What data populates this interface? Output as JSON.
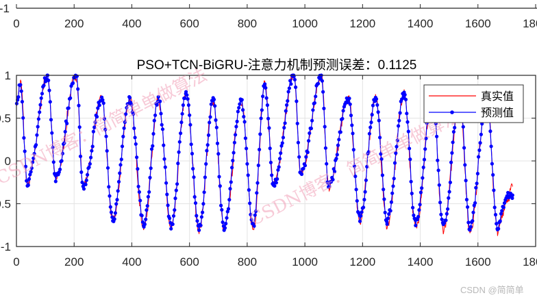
{
  "top_panel": {
    "x_ticks": [
      "0",
      "200",
      "400",
      "600",
      "800",
      "1000",
      "1200",
      "1400",
      "1600",
      "1800"
    ],
    "y_tick_bottom": "-1"
  },
  "chart_data": {
    "type": "line",
    "title": "PSO+TCN-BiGRU-注意力机制预测误差：0.1125",
    "xlabel": "",
    "ylabel": "",
    "xlim": [
      0,
      1800
    ],
    "ylim": [
      -1,
      1
    ],
    "x_ticks": [
      "0",
      "200",
      "400",
      "600",
      "800",
      "1000",
      "1200",
      "1400",
      "1600",
      "1800"
    ],
    "y_ticks": [
      "-1",
      "-0.5",
      "0",
      "0.5",
      "1"
    ],
    "grid": true,
    "legend_position": "top-right",
    "series": [
      {
        "name": "真实值",
        "color": "#ff0000",
        "marker": "none",
        "x": [
          1,
          14,
          38,
          108,
          136,
          207,
          231,
          296,
          334,
          393,
          442,
          492,
          536,
          588,
          633,
          682,
          720,
          779,
          821,
          861,
          892,
          962,
          986,
          1057,
          1082,
          1151,
          1191,
          1245,
          1285,
          1344,
          1384,
          1442,
          1480,
          1537,
          1572,
          1631,
          1668,
          1701,
          1720
        ],
        "y": [
          0.7,
          0.92,
          -0.27,
          1.0,
          -0.22,
          1.0,
          -0.3,
          0.72,
          -0.7,
          0.72,
          -0.78,
          0.72,
          -0.8,
          0.77,
          -0.8,
          0.7,
          -0.8,
          0.7,
          -0.8,
          0.9,
          -0.28,
          1.0,
          -0.15,
          1.0,
          -0.3,
          0.72,
          -0.7,
          0.75,
          -0.75,
          0.78,
          -0.78,
          0.75,
          -0.8,
          0.75,
          -0.82,
          0.75,
          -0.82,
          -0.45,
          -0.3
        ]
      },
      {
        "name": "预测值",
        "color": "#0000ff",
        "marker": "dot",
        "x": [
          1,
          14,
          38,
          108,
          136,
          207,
          231,
          296,
          334,
          393,
          442,
          492,
          536,
          588,
          633,
          682,
          720,
          779,
          821,
          861,
          892,
          962,
          986,
          1057,
          1082,
          1151,
          1191,
          1245,
          1285,
          1344,
          1384,
          1442,
          1480,
          1537,
          1572,
          1631,
          1668,
          1701,
          1720
        ],
        "y": [
          0.65,
          0.9,
          -0.25,
          1.0,
          -0.2,
          1.0,
          -0.3,
          0.72,
          -0.68,
          0.72,
          -0.73,
          0.72,
          -0.75,
          0.77,
          -0.77,
          0.7,
          -0.77,
          0.7,
          -0.75,
          0.88,
          -0.28,
          1.0,
          -0.15,
          1.0,
          -0.3,
          0.72,
          -0.68,
          0.75,
          -0.7,
          0.78,
          -0.72,
          0.75,
          -0.77,
          0.75,
          -0.77,
          0.75,
          -0.77,
          -0.4,
          -0.4
        ]
      }
    ]
  },
  "watermarks": {
    "blog": "CSDN博客：简简单单做算法",
    "corner": "CSDN @简简单"
  }
}
